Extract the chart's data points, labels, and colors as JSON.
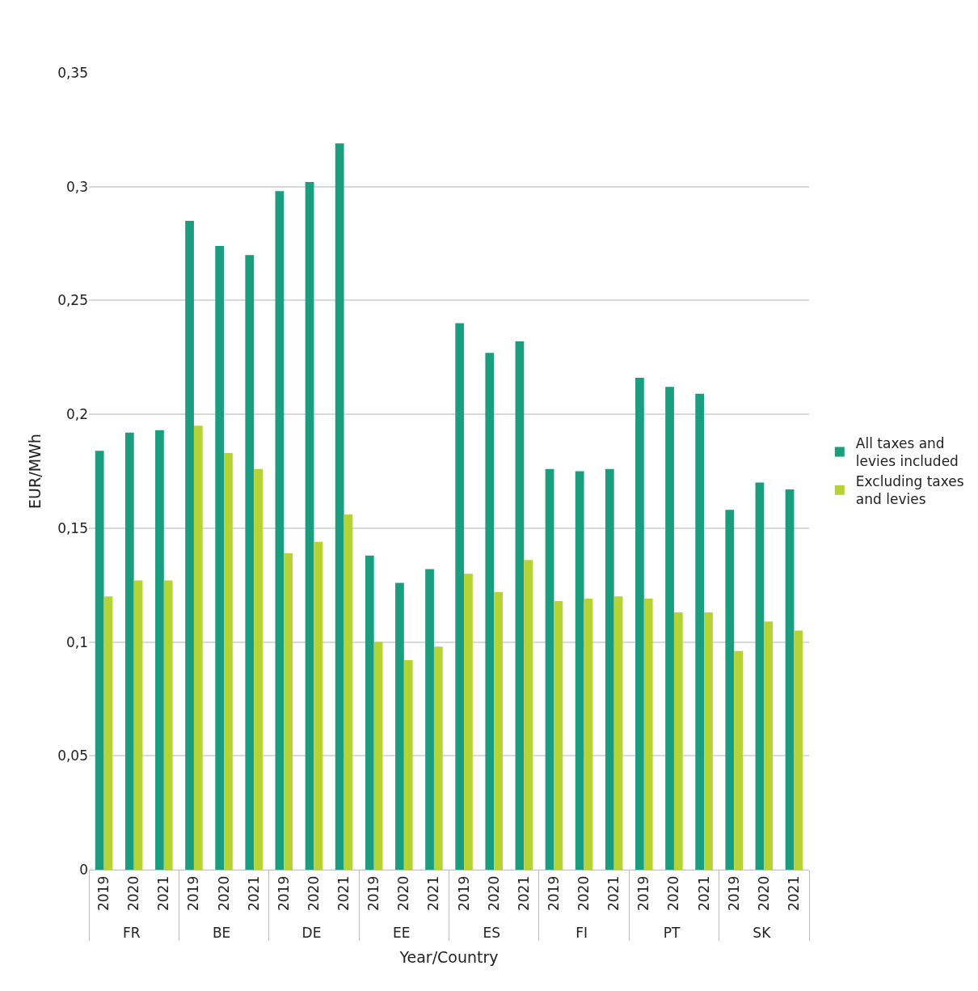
{
  "chart_data": {
    "type": "bar",
    "xlabel": "Year/Country",
    "ylabel": "EUR/MWh",
    "categories": [
      "2019",
      "2020",
      "2021",
      "2019",
      "2020",
      "2021",
      "2019",
      "2020",
      "2021",
      "2019",
      "2020",
      "2021",
      "2019",
      "2020",
      "2021",
      "2019",
      "2020",
      "2021",
      "2019",
      "2020",
      "2021",
      "2019",
      "2020",
      "2021"
    ],
    "annotations": [
      "FR",
      "BE",
      "DE",
      "EE",
      "ES",
      "FI",
      "PT",
      "SK"
    ],
    "series": [
      {
        "name": "All taxes and levies included",
        "color": "#1a9e7f",
        "values": [
          0.184,
          0.192,
          0.193,
          0.285,
          0.274,
          0.27,
          0.298,
          0.302,
          0.319,
          0.138,
          0.126,
          0.132,
          0.24,
          0.227,
          0.232,
          0.176,
          0.175,
          0.176,
          0.216,
          0.212,
          0.209,
          0.158,
          0.17,
          0.167
        ]
      },
      {
        "name": "Excluding taxes and levies",
        "color": "#b5d334",
        "values": [
          0.12,
          0.127,
          0.127,
          0.195,
          0.183,
          0.176,
          0.139,
          0.144,
          0.156,
          0.1,
          0.092,
          0.098,
          0.13,
          0.122,
          0.136,
          0.118,
          0.119,
          0.12,
          0.119,
          0.113,
          0.113,
          0.096,
          0.109,
          0.105
        ]
      }
    ],
    "ylim": [
      0,
      0.35
    ],
    "yticks": [
      {
        "value": 0,
        "label": "0"
      },
      {
        "value": 0.05,
        "label": "0,05"
      },
      {
        "value": 0.1,
        "label": "0,1"
      },
      {
        "value": 0.15,
        "label": "0,15"
      },
      {
        "value": 0.2,
        "label": "0,2"
      },
      {
        "value": 0.25,
        "label": "0,25"
      },
      {
        "value": 0.3,
        "label": "0,3"
      },
      {
        "value": 0.35,
        "label": "0,35"
      }
    ],
    "grid": "y",
    "legend": "right"
  }
}
